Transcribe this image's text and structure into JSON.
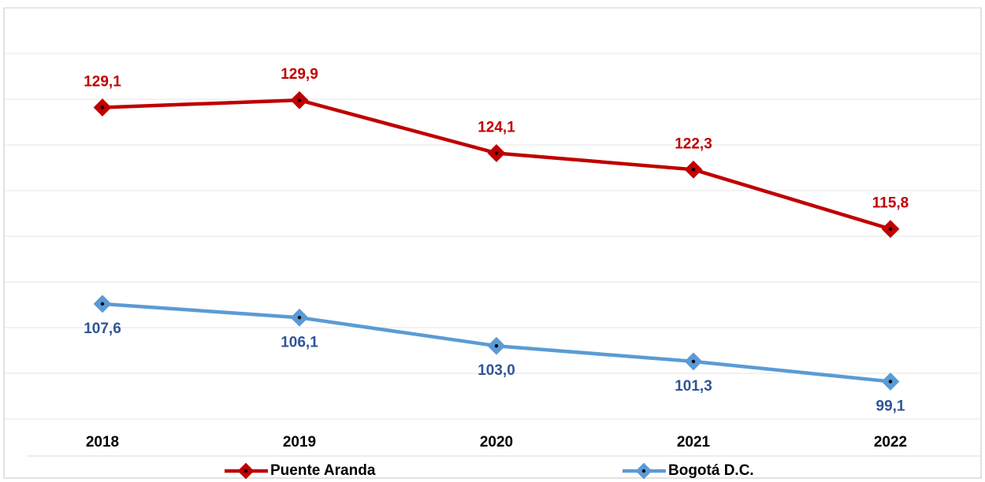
{
  "chart_data": {
    "type": "line",
    "categories": [
      "2018",
      "2019",
      "2020",
      "2021",
      "2022"
    ],
    "series": [
      {
        "name": "Puente Aranda",
        "color": "#c00000",
        "label_color": "#c00000",
        "values": [
          129.1,
          129.9,
          124.1,
          122.3,
          115.8
        ],
        "value_labels": [
          "129,1",
          "129,9",
          "124,1",
          "122,3",
          "115,8"
        ]
      },
      {
        "name": "Bogotá D.C.",
        "color": "#5b9bd5",
        "label_color": "#2f5597",
        "values": [
          107.6,
          106.1,
          103.0,
          101.3,
          99.1
        ],
        "value_labels": [
          "107,6",
          "106,1",
          "103,0",
          "101,3",
          "99,1"
        ]
      }
    ],
    "ylim": [
      95,
      140
    ],
    "yticks": [
      95,
      100,
      105,
      110,
      115,
      120,
      125,
      130,
      135,
      140
    ],
    "grid": true,
    "legend": "bottom"
  }
}
